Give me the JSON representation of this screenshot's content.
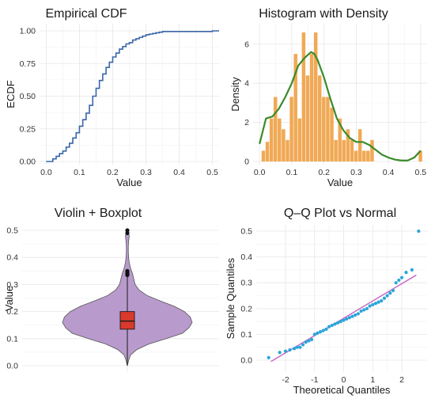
{
  "chart_data": [
    {
      "type": "line",
      "subtype": "step",
      "title": "Empirical CDF",
      "xlabel": "Value",
      "ylabel": "ECDF",
      "xlim": [
        -0.02,
        0.52
      ],
      "ylim": [
        0,
        1
      ],
      "x_ticks": [
        "0.0",
        "0.1",
        "0.2",
        "0.3",
        "0.4",
        "0.5"
      ],
      "y_ticks": [
        "0.00",
        "0.25",
        "0.50",
        "0.75",
        "1.00"
      ],
      "grid": true,
      "color": "#3a66a8",
      "series": [
        {
          "x": [
            0.0,
            0.02,
            0.03,
            0.04,
            0.05,
            0.06,
            0.07,
            0.08,
            0.09,
            0.1,
            0.11,
            0.12,
            0.13,
            0.14,
            0.15,
            0.16,
            0.17,
            0.18,
            0.19,
            0.2,
            0.21,
            0.22,
            0.23,
            0.24,
            0.25,
            0.26,
            0.27,
            0.28,
            0.29,
            0.3,
            0.31,
            0.32,
            0.33,
            0.34,
            0.35,
            0.5,
            0.52
          ],
          "y": [
            0.0,
            0.02,
            0.04,
            0.06,
            0.08,
            0.11,
            0.14,
            0.18,
            0.22,
            0.27,
            0.32,
            0.37,
            0.43,
            0.5,
            0.56,
            0.62,
            0.67,
            0.72,
            0.76,
            0.8,
            0.83,
            0.86,
            0.88,
            0.9,
            0.91,
            0.93,
            0.94,
            0.95,
            0.96,
            0.97,
            0.975,
            0.98,
            0.985,
            0.99,
            0.995,
            1.0,
            1.0
          ]
        }
      ]
    },
    {
      "type": "bar",
      "subtype": "histogram",
      "title": "Histogram with Density",
      "xlabel": "Value",
      "ylabel": "Density",
      "xlim": [
        -0.02,
        0.52
      ],
      "ylim": [
        0,
        6.8
      ],
      "x_ticks": [
        "0.0",
        "0.1",
        "0.2",
        "0.3",
        "0.4",
        "0.5"
      ],
      "y_ticks": [
        "0",
        "2",
        "4",
        "6"
      ],
      "grid": true,
      "bar_color": "#f0a955",
      "density_color": "#3a8a2a",
      "bin_width": 0.0125,
      "bins": [
        {
          "x": 0.0125,
          "v": 0.55
        },
        {
          "x": 0.025,
          "v": 1.0
        },
        {
          "x": 0.0375,
          "v": 2.2
        },
        {
          "x": 0.05,
          "v": 3.3
        },
        {
          "x": 0.0625,
          "v": 2.2
        },
        {
          "x": 0.075,
          "v": 1.65
        },
        {
          "x": 0.0875,
          "v": 1.1
        },
        {
          "x": 0.1,
          "v": 3.3
        },
        {
          "x": 0.1125,
          "v": 5.5
        },
        {
          "x": 0.125,
          "v": 2.2
        },
        {
          "x": 0.1375,
          "v": 6.6
        },
        {
          "x": 0.15,
          "v": 4.4
        },
        {
          "x": 0.1625,
          "v": 5.5
        },
        {
          "x": 0.175,
          "v": 6.6
        },
        {
          "x": 0.1875,
          "v": 4.4
        },
        {
          "x": 0.2,
          "v": 3.3
        },
        {
          "x": 0.2125,
          "v": 3.3
        },
        {
          "x": 0.225,
          "v": 2.75
        },
        {
          "x": 0.2375,
          "v": 1.1
        },
        {
          "x": 0.25,
          "v": 2.2
        },
        {
          "x": 0.2625,
          "v": 1.1
        },
        {
          "x": 0.275,
          "v": 1.65
        },
        {
          "x": 0.2875,
          "v": 1.1
        },
        {
          "x": 0.3,
          "v": 0.55
        },
        {
          "x": 0.3125,
          "v": 1.65
        },
        {
          "x": 0.325,
          "v": 0.55
        },
        {
          "x": 0.3375,
          "v": 0.55
        },
        {
          "x": 0.35,
          "v": 1.1
        },
        {
          "x": 0.5,
          "v": 0.55
        }
      ],
      "density": {
        "x": [
          0.0,
          0.02,
          0.04,
          0.06,
          0.08,
          0.1,
          0.12,
          0.14,
          0.16,
          0.17,
          0.18,
          0.2,
          0.22,
          0.24,
          0.26,
          0.28,
          0.3,
          0.32,
          0.34,
          0.36,
          0.38,
          0.4,
          0.42,
          0.44,
          0.46,
          0.48,
          0.5
        ],
        "y": [
          0.9,
          2.2,
          2.3,
          2.7,
          3.3,
          4.0,
          4.9,
          5.3,
          5.6,
          5.5,
          5.2,
          4.3,
          3.2,
          2.2,
          1.6,
          1.2,
          1.0,
          1.0,
          0.85,
          0.6,
          0.35,
          0.2,
          0.1,
          0.05,
          0.05,
          0.2,
          0.55
        ]
      }
    },
    {
      "type": "violin",
      "title": "Violin + Boxplot",
      "xlabel": "",
      "ylabel": "Value",
      "ylim": [
        -0.02,
        0.52
      ],
      "y_ticks": [
        "0.0",
        "0.1",
        "0.2",
        "0.3",
        "0.4",
        "0.5"
      ],
      "grid": true,
      "violin_color": "#b89acc",
      "box_color": "#d93a2b",
      "violin_profile": {
        "y": [
          0.0,
          0.02,
          0.04,
          0.06,
          0.08,
          0.1,
          0.12,
          0.14,
          0.16,
          0.18,
          0.2,
          0.22,
          0.24,
          0.26,
          0.28,
          0.3,
          0.32,
          0.34,
          0.36,
          0.38,
          0.4,
          0.42,
          0.44,
          0.46,
          0.48,
          0.5
        ],
        "half_width": [
          0.0,
          0.02,
          0.05,
          0.15,
          0.33,
          0.6,
          0.85,
          0.95,
          1.0,
          0.97,
          0.88,
          0.72,
          0.5,
          0.3,
          0.18,
          0.12,
          0.1,
          0.08,
          0.05,
          0.03,
          0.02,
          0.015,
          0.015,
          0.02,
          0.03,
          0.0
        ]
      },
      "box": {
        "whisker_low": 0.0,
        "q1": 0.135,
        "median": 0.165,
        "q3": 0.2,
        "whisker_high": 0.33
      },
      "outliers": [
        0.335,
        0.34,
        0.345,
        0.35,
        0.49,
        0.5
      ]
    },
    {
      "type": "scatter",
      "subtype": "qq",
      "title": "Q–Q Plot vs Normal",
      "xlabel": "Theoretical Quantiles",
      "ylabel": "Sample Quantiles",
      "xlim": [
        -2.8,
        2.8
      ],
      "ylim": [
        -0.02,
        0.52
      ],
      "x_ticks": [
        "-2",
        "-1",
        "0",
        "1",
        "2"
      ],
      "y_ticks": [
        "0.0",
        "0.1",
        "0.2",
        "0.3",
        "0.4",
        "0.5"
      ],
      "grid": true,
      "point_color": "#2aa5d8",
      "line_color": "#c86bc9",
      "reference_line": {
        "x": [
          -2.5,
          2.5
        ],
        "y": [
          -0.005,
          0.33
        ]
      },
      "points": {
        "x": [
          -2.58,
          -2.2,
          -2.0,
          -1.85,
          -1.7,
          -1.6,
          -1.5,
          -1.4,
          -1.3,
          -1.2,
          -1.1,
          -1.0,
          -0.9,
          -0.8,
          -0.7,
          -0.6,
          -0.5,
          -0.4,
          -0.3,
          -0.2,
          -0.1,
          0.0,
          0.1,
          0.2,
          0.3,
          0.4,
          0.5,
          0.6,
          0.7,
          0.8,
          0.9,
          1.0,
          1.1,
          1.2,
          1.3,
          1.4,
          1.5,
          1.6,
          1.7,
          1.8,
          1.9,
          2.0,
          2.15,
          2.35,
          2.58
        ],
        "y": [
          0.01,
          0.03,
          0.035,
          0.04,
          0.045,
          0.05,
          0.05,
          0.06,
          0.07,
          0.075,
          0.08,
          0.1,
          0.105,
          0.11,
          0.115,
          0.12,
          0.13,
          0.135,
          0.14,
          0.145,
          0.15,
          0.155,
          0.16,
          0.165,
          0.17,
          0.175,
          0.18,
          0.19,
          0.195,
          0.2,
          0.21,
          0.215,
          0.22,
          0.225,
          0.23,
          0.24,
          0.25,
          0.26,
          0.27,
          0.3,
          0.31,
          0.32,
          0.34,
          0.35,
          0.5
        ]
      }
    }
  ]
}
